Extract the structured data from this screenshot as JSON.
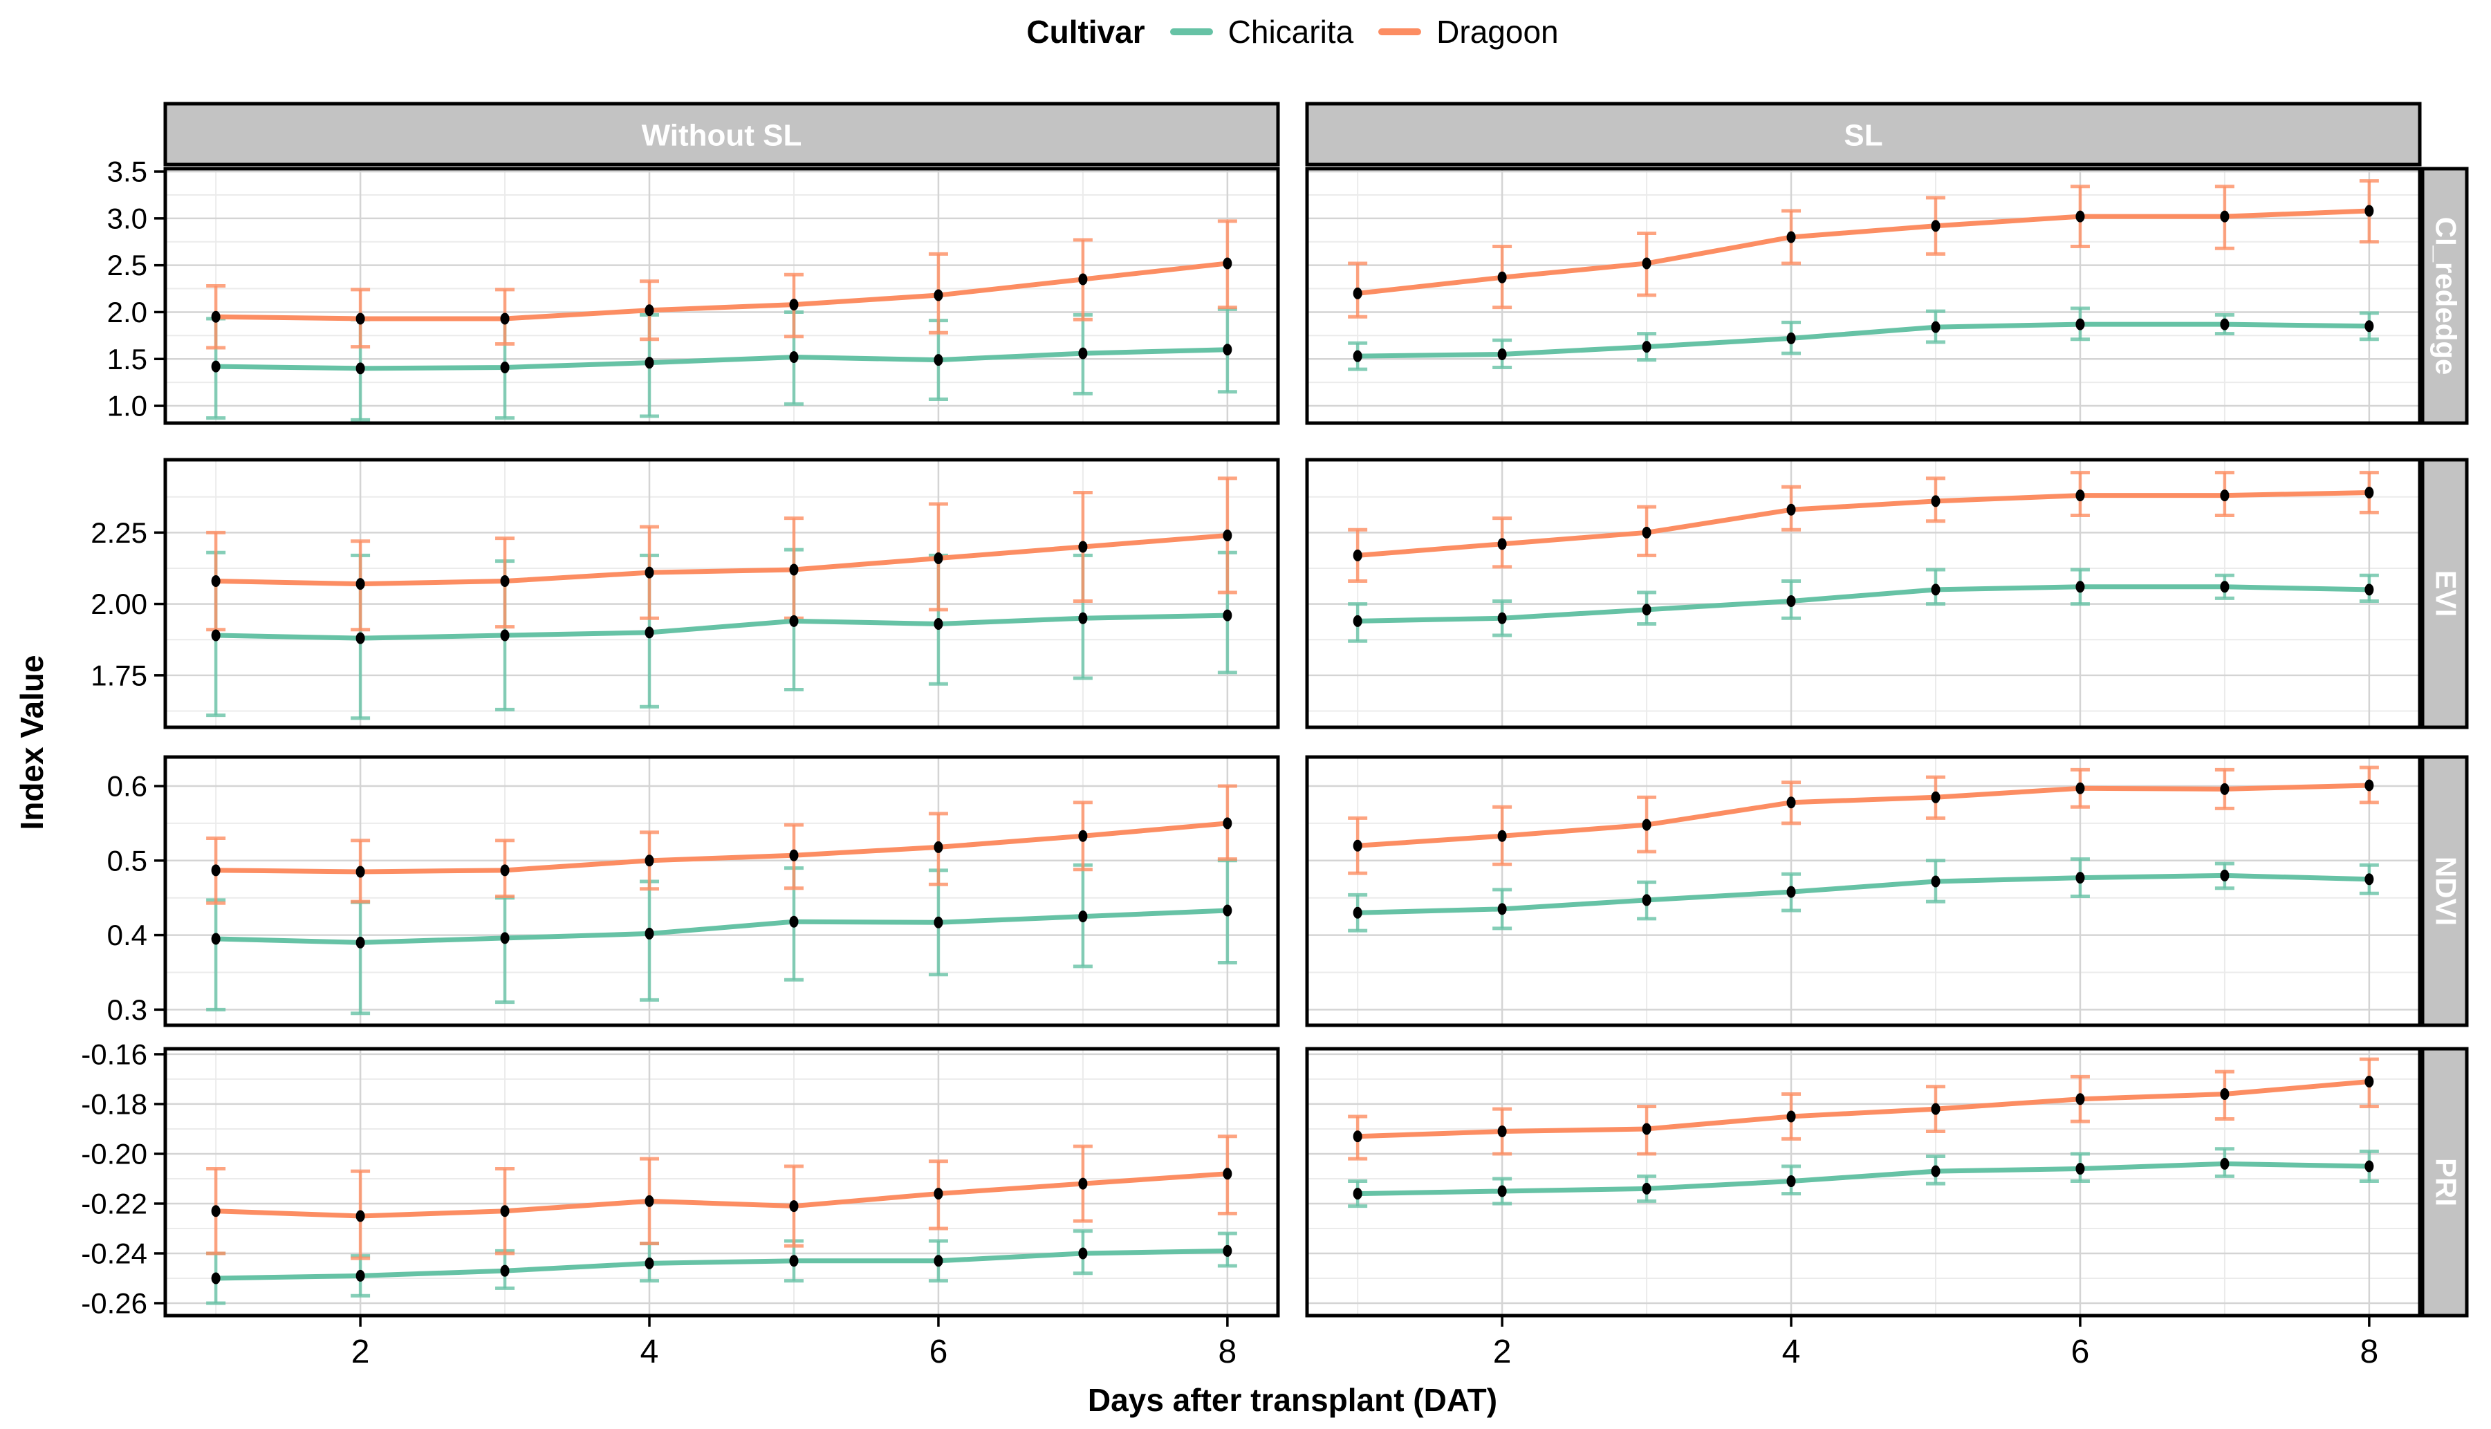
{
  "legend": {
    "title": "Cultivar",
    "items": [
      {
        "label": "Chicarita",
        "color": "#66C2A5"
      },
      {
        "label": "Dragoon",
        "color": "#FC8D62"
      }
    ]
  },
  "axes": {
    "x_title": "Days after transplant (DAT)",
    "y_title": "Index Value"
  },
  "chart_data": {
    "type": "line",
    "x": [
      1,
      2,
      3,
      4,
      5,
      6,
      7,
      8
    ],
    "x_ticks": [
      2,
      4,
      6,
      8
    ],
    "x_minor": [
      1,
      3,
      5,
      7
    ],
    "x_domain": [
      0.65,
      8.35
    ],
    "xlabel": "Days after transplant (DAT)",
    "ylabel": "Index Value",
    "legend_position": "top",
    "grid": true,
    "col_facets": [
      {
        "key": "without-sl",
        "label": "Without SL"
      },
      {
        "key": "sl",
        "label": "SL"
      }
    ],
    "rows": [
      {
        "key": "ci-rededge",
        "label": "CI_rededge",
        "ylim": [
          0.816,
          3.53
        ],
        "ticks": [
          3.5,
          3.0,
          2.5,
          2.0,
          1.5,
          1.0
        ],
        "tick_labels": [
          "3.5",
          "3.0",
          "2.5",
          "2.0",
          "1.5",
          "1.0"
        ],
        "minor": [
          3.25,
          2.75,
          2.25,
          1.75,
          1.25
        ],
        "panels": [
          {
            "series": [
              {
                "name": "Chicarita",
                "mean": [
                  1.42,
                  1.4,
                  1.41,
                  1.46,
                  1.52,
                  1.49,
                  1.56,
                  1.6
                ],
                "lo": [
                  0.87,
                  0.85,
                  0.87,
                  0.89,
                  1.02,
                  1.07,
                  1.13,
                  1.15
                ],
                "hi": [
                  1.93,
                  1.92,
                  1.93,
                  1.97,
                  2.0,
                  1.91,
                  1.97,
                  2.03
                ]
              },
              {
                "name": "Dragoon",
                "mean": [
                  1.95,
                  1.93,
                  1.93,
                  2.02,
                  2.08,
                  2.18,
                  2.35,
                  2.52
                ],
                "lo": [
                  1.62,
                  1.63,
                  1.66,
                  1.71,
                  1.74,
                  1.78,
                  1.92,
                  2.05
                ],
                "hi": [
                  2.28,
                  2.24,
                  2.24,
                  2.33,
                  2.4,
                  2.62,
                  2.77,
                  2.97
                ]
              }
            ]
          },
          {
            "series": [
              {
                "name": "Chicarita",
                "mean": [
                  1.53,
                  1.55,
                  1.63,
                  1.72,
                  1.84,
                  1.87,
                  1.87,
                  1.85
                ],
                "lo": [
                  1.39,
                  1.41,
                  1.49,
                  1.56,
                  1.68,
                  1.71,
                  1.77,
                  1.71
                ],
                "hi": [
                  1.67,
                  1.7,
                  1.77,
                  1.89,
                  2.01,
                  2.04,
                  1.97,
                  1.99
                ]
              },
              {
                "name": "Dragoon",
                "mean": [
                  2.2,
                  2.37,
                  2.52,
                  2.8,
                  2.92,
                  3.02,
                  3.02,
                  3.08
                ],
                "lo": [
                  1.95,
                  2.05,
                  2.18,
                  2.52,
                  2.62,
                  2.7,
                  2.68,
                  2.75
                ],
                "hi": [
                  2.52,
                  2.7,
                  2.84,
                  3.08,
                  3.22,
                  3.34,
                  3.34,
                  3.4
                ]
              }
            ]
          }
        ]
      },
      {
        "key": "evi",
        "label": "EVI",
        "ylim": [
          1.568,
          2.505
        ],
        "ticks": [
          2.25,
          2.0,
          1.75
        ],
        "tick_labels": [
          "2.25",
          "2.00",
          "1.75"
        ],
        "minor": [
          2.375,
          2.125,
          1.875,
          1.625
        ],
        "panels": [
          {
            "series": [
              {
                "name": "Chicarita",
                "mean": [
                  1.89,
                  1.88,
                  1.89,
                  1.9,
                  1.94,
                  1.93,
                  1.95,
                  1.96
                ],
                "lo": [
                  1.61,
                  1.6,
                  1.63,
                  1.64,
                  1.7,
                  1.72,
                  1.74,
                  1.76
                ],
                "hi": [
                  2.18,
                  2.17,
                  2.15,
                  2.17,
                  2.19,
                  2.17,
                  2.17,
                  2.18
                ]
              },
              {
                "name": "Dragoon",
                "mean": [
                  2.08,
                  2.07,
                  2.08,
                  2.11,
                  2.12,
                  2.16,
                  2.2,
                  2.24
                ],
                "lo": [
                  1.91,
                  1.91,
                  1.92,
                  1.95,
                  1.95,
                  1.98,
                  2.01,
                  2.04
                ],
                "hi": [
                  2.25,
                  2.22,
                  2.23,
                  2.27,
                  2.3,
                  2.35,
                  2.39,
                  2.44
                ]
              }
            ]
          },
          {
            "series": [
              {
                "name": "Chicarita",
                "mean": [
                  1.94,
                  1.95,
                  1.98,
                  2.01,
                  2.05,
                  2.06,
                  2.06,
                  2.05
                ],
                "lo": [
                  1.87,
                  1.89,
                  1.93,
                  1.95,
                  2.0,
                  2.0,
                  2.02,
                  2.01
                ],
                "hi": [
                  2.0,
                  2.01,
                  2.04,
                  2.08,
                  2.12,
                  2.12,
                  2.1,
                  2.1
                ]
              },
              {
                "name": "Dragoon",
                "mean": [
                  2.17,
                  2.21,
                  2.25,
                  2.33,
                  2.36,
                  2.38,
                  2.38,
                  2.39
                ],
                "lo": [
                  2.08,
                  2.13,
                  2.17,
                  2.26,
                  2.29,
                  2.31,
                  2.31,
                  2.32
                ],
                "hi": [
                  2.26,
                  2.3,
                  2.34,
                  2.41,
                  2.44,
                  2.46,
                  2.46,
                  2.46
                ]
              }
            ]
          }
        ]
      },
      {
        "key": "ndvi",
        "label": "NDVI",
        "ylim": [
          0.279,
          0.639
        ],
        "ticks": [
          0.6,
          0.5,
          0.4,
          0.3
        ],
        "tick_labels": [
          "0.6",
          "0.5",
          "0.4",
          "0.3"
        ],
        "minor": [
          0.55,
          0.45,
          0.35
        ],
        "panels": [
          {
            "series": [
              {
                "name": "Chicarita",
                "mean": [
                  0.395,
                  0.39,
                  0.396,
                  0.402,
                  0.418,
                  0.417,
                  0.425,
                  0.433
                ],
                "lo": [
                  0.3,
                  0.295,
                  0.31,
                  0.313,
                  0.34,
                  0.347,
                  0.358,
                  0.363
                ],
                "hi": [
                  0.447,
                  0.444,
                  0.45,
                  0.472,
                  0.49,
                  0.487,
                  0.494,
                  0.5
                ]
              },
              {
                "name": "Dragoon",
                "mean": [
                  0.487,
                  0.485,
                  0.487,
                  0.5,
                  0.507,
                  0.518,
                  0.533,
                  0.55
                ],
                "lo": [
                  0.443,
                  0.445,
                  0.452,
                  0.462,
                  0.463,
                  0.468,
                  0.488,
                  0.502
                ],
                "hi": [
                  0.53,
                  0.527,
                  0.527,
                  0.538,
                  0.548,
                  0.563,
                  0.578,
                  0.6
                ]
              }
            ]
          },
          {
            "series": [
              {
                "name": "Chicarita",
                "mean": [
                  0.43,
                  0.435,
                  0.447,
                  0.458,
                  0.472,
                  0.477,
                  0.48,
                  0.475
                ],
                "lo": [
                  0.406,
                  0.409,
                  0.422,
                  0.433,
                  0.445,
                  0.452,
                  0.463,
                  0.456
                ],
                "hi": [
                  0.454,
                  0.461,
                  0.471,
                  0.482,
                  0.5,
                  0.502,
                  0.496,
                  0.494
                ]
              },
              {
                "name": "Dragoon",
                "mean": [
                  0.52,
                  0.533,
                  0.548,
                  0.578,
                  0.585,
                  0.597,
                  0.596,
                  0.601
                ],
                "lo": [
                  0.483,
                  0.495,
                  0.512,
                  0.55,
                  0.557,
                  0.572,
                  0.57,
                  0.578
                ],
                "hi": [
                  0.557,
                  0.572,
                  0.585,
                  0.605,
                  0.612,
                  0.622,
                  0.622,
                  0.625
                ]
              }
            ]
          }
        ]
      },
      {
        "key": "pri",
        "label": "PRI",
        "ylim": [
          -0.265,
          -0.1578
        ],
        "ticks": [
          -0.16,
          -0.18,
          -0.2,
          -0.22,
          -0.24,
          -0.26
        ],
        "tick_labels": [
          "-0.16",
          "-0.18",
          "-0.20",
          "-0.22",
          "-0.24",
          "-0.26"
        ],
        "minor": [
          -0.17,
          -0.19,
          -0.21,
          -0.23,
          -0.25
        ],
        "panels": [
          {
            "series": [
              {
                "name": "Chicarita",
                "mean": [
                  -0.25,
                  -0.249,
                  -0.247,
                  -0.244,
                  -0.243,
                  -0.243,
                  -0.24,
                  -0.239
                ],
                "lo": [
                  -0.26,
                  -0.257,
                  -0.254,
                  -0.251,
                  -0.251,
                  -0.251,
                  -0.248,
                  -0.245
                ],
                "hi": [
                  -0.24,
                  -0.241,
                  -0.239,
                  -0.236,
                  -0.235,
                  -0.235,
                  -0.231,
                  -0.232
                ]
              },
              {
                "name": "Dragoon",
                "mean": [
                  -0.223,
                  -0.225,
                  -0.223,
                  -0.219,
                  -0.221,
                  -0.216,
                  -0.212,
                  -0.208
                ],
                "lo": [
                  -0.24,
                  -0.242,
                  -0.24,
                  -0.236,
                  -0.237,
                  -0.23,
                  -0.227,
                  -0.224
                ],
                "hi": [
                  -0.206,
                  -0.207,
                  -0.206,
                  -0.202,
                  -0.205,
                  -0.203,
                  -0.197,
                  -0.193
                ]
              }
            ]
          },
          {
            "series": [
              {
                "name": "Chicarita",
                "mean": [
                  -0.216,
                  -0.215,
                  -0.214,
                  -0.211,
                  -0.207,
                  -0.206,
                  -0.204,
                  -0.205
                ],
                "lo": [
                  -0.221,
                  -0.22,
                  -0.219,
                  -0.216,
                  -0.212,
                  -0.211,
                  -0.209,
                  -0.211
                ],
                "hi": [
                  -0.211,
                  -0.21,
                  -0.209,
                  -0.205,
                  -0.201,
                  -0.2,
                  -0.198,
                  -0.199
                ]
              },
              {
                "name": "Dragoon",
                "mean": [
                  -0.193,
                  -0.191,
                  -0.19,
                  -0.185,
                  -0.182,
                  -0.178,
                  -0.176,
                  -0.171
                ],
                "lo": [
                  -0.202,
                  -0.2,
                  -0.2,
                  -0.194,
                  -0.191,
                  -0.187,
                  -0.186,
                  -0.181
                ],
                "hi": [
                  -0.185,
                  -0.182,
                  -0.181,
                  -0.176,
                  -0.173,
                  -0.169,
                  -0.167,
                  -0.162
                ]
              }
            ]
          }
        ]
      }
    ],
    "style": {
      "strip_bg": "#c3c3c3",
      "strip_text": "#ffffff",
      "panel_border": "#000000",
      "grid_major": "#d4d4d4",
      "grid_minor": "#ebebeb",
      "point_color": "#000000"
    }
  }
}
